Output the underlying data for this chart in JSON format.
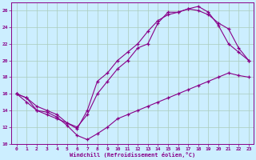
{
  "xlabel": "Windchill (Refroidissement éolien,°C)",
  "background_color": "#cceeff",
  "grid_color": "#aaccbb",
  "line_color": "#880088",
  "xlim": [
    -0.5,
    23.5
  ],
  "ylim": [
    10,
    27
  ],
  "xticks": [
    0,
    1,
    2,
    3,
    4,
    5,
    6,
    7,
    8,
    9,
    10,
    11,
    12,
    13,
    14,
    15,
    16,
    17,
    18,
    19,
    20,
    21,
    22,
    23
  ],
  "yticks": [
    10,
    12,
    14,
    16,
    18,
    20,
    22,
    24,
    26
  ],
  "line1_x": [
    0,
    1,
    2,
    3,
    4,
    5,
    6,
    7,
    8,
    9,
    10,
    11,
    12,
    13,
    14,
    15,
    16,
    17,
    18,
    19,
    20,
    21,
    22,
    23
  ],
  "line1_y": [
    16.0,
    15.5,
    14.0,
    13.8,
    13.2,
    12.2,
    11.0,
    10.5,
    11.2,
    12.0,
    13.0,
    13.5,
    14.0,
    14.5,
    15.0,
    15.5,
    16.0,
    16.5,
    17.0,
    17.5,
    18.0,
    18.5,
    18.2,
    18.0
  ],
  "line2_x": [
    0,
    1,
    2,
    3,
    4,
    5,
    6,
    7,
    8,
    9,
    10,
    11,
    12,
    13,
    14,
    15,
    16,
    17,
    18,
    19,
    20,
    21,
    22,
    23
  ],
  "line2_y": [
    16.0,
    15.5,
    14.5,
    14.0,
    13.5,
    12.5,
    12.0,
    13.5,
    16.0,
    17.5,
    19.0,
    20.0,
    21.5,
    22.0,
    24.5,
    25.8,
    25.8,
    26.2,
    26.5,
    25.8,
    24.2,
    22.0,
    21.0,
    20.0
  ],
  "line3_x": [
    0,
    1,
    2,
    3,
    4,
    5,
    6,
    7,
    8,
    9,
    10,
    11,
    12,
    13,
    14,
    15,
    16,
    17,
    18,
    19,
    20,
    21,
    22,
    23
  ],
  "line3_y": [
    16.0,
    15.0,
    14.0,
    13.5,
    13.0,
    12.5,
    11.8,
    14.0,
    17.5,
    18.5,
    20.0,
    21.0,
    22.0,
    23.5,
    24.8,
    25.5,
    25.8,
    26.2,
    26.0,
    25.5,
    24.5,
    23.8,
    21.5,
    20.0
  ]
}
